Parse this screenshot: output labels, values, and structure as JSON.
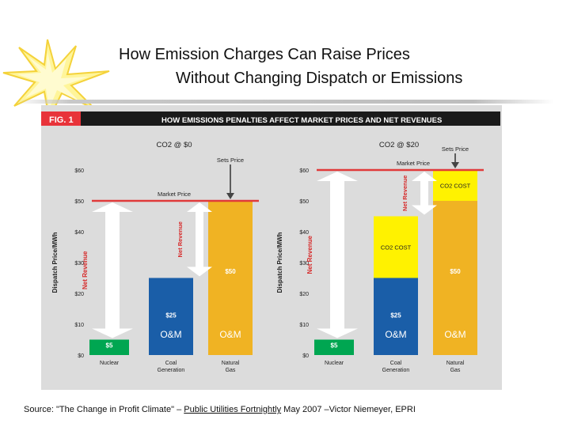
{
  "slide": {
    "title_line1": "How Emission Charges Can Raise Prices",
    "title_line2": "Without Changing Dispatch or Emissions",
    "source_prefix": "Source:  \"The Change in Profit Climate\" – ",
    "source_publication": "Public Utilities Fortnightly",
    "source_suffix": " May 2007 –Victor Niemeyer, EPRI"
  },
  "figure": {
    "fig_label": "FIG. 1",
    "fig_title": "HOW EMISSIONS PENALTIES AFFECT MARKET PRICES AND NET REVENUES"
  },
  "colors": {
    "nuclear": "#00a651",
    "coal": "#1a5ea8",
    "gas": "#f0b323",
    "co2": "#fff200",
    "market_price_line": "#e03a3a",
    "header_bar": "#1a1a1a",
    "fig_label_bg": "#e8333a",
    "arrow": "#ffffff",
    "background": "#dcdcdc"
  },
  "chart_data": [
    {
      "type": "bar",
      "title": "CO2 @ $0",
      "ylabel": "Dispatch Price/MWh",
      "ylim": [
        0,
        60
      ],
      "yticks": [
        "$0",
        "$10",
        "$20",
        "$30",
        "$40",
        "$50",
        "$60"
      ],
      "categories": [
        "Nuclear",
        "Coal Generation",
        "Natural Gas"
      ],
      "series": [
        {
          "name": "O&M",
          "values": [
            5,
            25,
            50
          ],
          "labels": [
            "$5",
            "$25",
            "$50"
          ]
        }
      ],
      "om_labels": [
        "",
        "O&M",
        "O&M"
      ],
      "market_price": 50,
      "market_price_label": "Market Price",
      "sets_price_label": "Sets Price",
      "net_revenue_labels": [
        "Net Revenue",
        "Net Revenue",
        ""
      ]
    },
    {
      "type": "bar",
      "title": "CO2 @ $20",
      "ylabel": "Dispatch Price/MWh",
      "ylim": [
        0,
        60
      ],
      "yticks": [
        "$0",
        "$10",
        "$20",
        "$30",
        "$40",
        "$50",
        "$60"
      ],
      "categories": [
        "Nuclear",
        "Coal Generation",
        "Natural Gas"
      ],
      "series": [
        {
          "name": "O&M",
          "values": [
            5,
            25,
            50
          ],
          "labels": [
            "$5",
            "$25",
            "$50"
          ]
        },
        {
          "name": "CO2 COST",
          "values": [
            0,
            20,
            10
          ],
          "labels": [
            "",
            "CO2 COST",
            "CO2 COST"
          ]
        }
      ],
      "om_labels": [
        "",
        "O&M",
        "O&M"
      ],
      "market_price": 60,
      "market_price_label": "Market Price",
      "sets_price_label": "Sets Price",
      "net_revenue_labels": [
        "Net Revenue",
        "Net Revenue",
        ""
      ]
    }
  ]
}
